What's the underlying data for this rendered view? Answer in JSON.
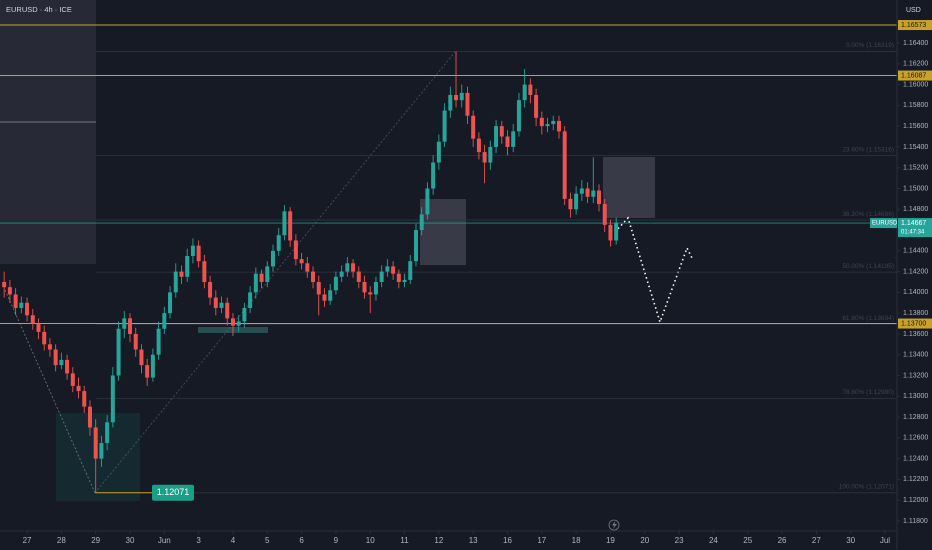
{
  "chart_data": {
    "type": "candlestick",
    "title": "EURUSD · 4h · ICE",
    "currency": "USD",
    "up_color": "#26a69a",
    "down_color": "#ef5350",
    "xlim": [
      -4.73,
      152.1
    ],
    "ylim": [
      1.11713,
      1.16814
    ],
    "xticks": [
      {
        "value": 0,
        "label": "27"
      },
      {
        "value": 6,
        "label": "28"
      },
      {
        "value": 12,
        "label": "29"
      },
      {
        "value": 18,
        "label": "30"
      },
      {
        "value": 24,
        "label": "Jun"
      },
      {
        "value": 30,
        "label": "3"
      },
      {
        "value": 36,
        "label": "4"
      },
      {
        "value": 42,
        "label": "5"
      },
      {
        "value": 48,
        "label": "6"
      },
      {
        "value": 54,
        "label": "9"
      },
      {
        "value": 60,
        "label": "10"
      },
      {
        "value": 66,
        "label": "11"
      },
      {
        "value": 72,
        "label": "12"
      },
      {
        "value": 78,
        "label": "13"
      },
      {
        "value": 84,
        "label": "16"
      },
      {
        "value": 90,
        "label": "17"
      },
      {
        "value": 96,
        "label": "18"
      },
      {
        "value": 102,
        "label": "19"
      },
      {
        "value": 108,
        "label": "20"
      },
      {
        "value": 114,
        "label": "23"
      },
      {
        "value": 120,
        "label": "24"
      },
      {
        "value": 126,
        "label": "25"
      },
      {
        "value": 132,
        "label": "26"
      },
      {
        "value": 138,
        "label": "27"
      },
      {
        "value": 144,
        "label": "30"
      },
      {
        "value": 150,
        "label": "Jul"
      }
    ],
    "yticks": [
      {
        "value": 1.164,
        "label": "1.16400"
      },
      {
        "value": 1.162,
        "label": "1.16200"
      },
      {
        "value": 1.16,
        "label": "1.16000"
      },
      {
        "value": 1.158,
        "label": "1.15800"
      },
      {
        "value": 1.156,
        "label": "1.15600"
      },
      {
        "value": 1.154,
        "label": "1.15400"
      },
      {
        "value": 1.152,
        "label": "1.15200"
      },
      {
        "value": 1.15,
        "label": "1.15000"
      },
      {
        "value": 1.148,
        "label": "1.14800"
      },
      {
        "value": 1.144,
        "label": "1.14400"
      },
      {
        "value": 1.142,
        "label": "1.14200"
      },
      {
        "value": 1.14,
        "label": "1.14000"
      },
      {
        "value": 1.138,
        "label": "1.13800"
      },
      {
        "value": 1.136,
        "label": "1.13600"
      },
      {
        "value": 1.134,
        "label": "1.13400"
      },
      {
        "value": 1.132,
        "label": "1.13200"
      },
      {
        "value": 1.13,
        "label": "1.13000"
      },
      {
        "value": 1.128,
        "label": "1.12800"
      },
      {
        "value": 1.126,
        "label": "1.12600"
      },
      {
        "value": 1.124,
        "label": "1.12400"
      },
      {
        "value": 1.122,
        "label": "1.12200"
      },
      {
        "value": 1.12,
        "label": "1.12000"
      },
      {
        "value": 1.118,
        "label": "1.11800"
      }
    ],
    "x": [
      -4,
      -3,
      -2,
      -1,
      0,
      1,
      2,
      3,
      4,
      5,
      6,
      7,
      8,
      9,
      10,
      11,
      12,
      13,
      14,
      15,
      16,
      17,
      18,
      19,
      20,
      21,
      22,
      23,
      24,
      25,
      26,
      27,
      28,
      29,
      30,
      31,
      32,
      33,
      34,
      35,
      36,
      37,
      38,
      39,
      40,
      41,
      42,
      43,
      44,
      45,
      46,
      47,
      48,
      49,
      50,
      51,
      52,
      53,
      54,
      55,
      56,
      57,
      58,
      59,
      60,
      61,
      62,
      63,
      64,
      65,
      66,
      67,
      68,
      69,
      70,
      71,
      72,
      73,
      74,
      75,
      76,
      77,
      78,
      79,
      80,
      81,
      82,
      83,
      84,
      85,
      86,
      87,
      88,
      89,
      90,
      91,
      92,
      93,
      94,
      95,
      96,
      97,
      98,
      99,
      100,
      101,
      102,
      103
    ],
    "open": [
      1.141,
      1.1405,
      1.1398,
      1.1385,
      1.139,
      1.1378,
      1.137,
      1.1362,
      1.135,
      1.1345,
      1.133,
      1.1335,
      1.1322,
      1.131,
      1.1305,
      1.129,
      1.127,
      1.124,
      1.1255,
      1.1275,
      1.132,
      1.1365,
      1.1375,
      1.136,
      1.1345,
      1.133,
      1.1318,
      1.134,
      1.1365,
      1.138,
      1.14,
      1.142,
      1.1415,
      1.1435,
      1.1445,
      1.143,
      1.141,
      1.1395,
      1.1385,
      1.139,
      1.1375,
      1.1368,
      1.1372,
      1.1385,
      1.14,
      1.1418,
      1.141,
      1.1425,
      1.144,
      1.1455,
      1.1478,
      1.145,
      1.1432,
      1.1428,
      1.142,
      1.141,
      1.1398,
      1.1392,
      1.1402,
      1.1415,
      1.142,
      1.1428,
      1.142,
      1.141,
      1.14,
      1.1398,
      1.141,
      1.142,
      1.1425,
      1.1418,
      1.141,
      1.1412,
      1.143,
      1.146,
      1.1475,
      1.15,
      1.1525,
      1.1545,
      1.1575,
      1.159,
      1.1585,
      1.1592,
      1.157,
      1.1548,
      1.1535,
      1.1525,
      1.154,
      1.156,
      1.155,
      1.154,
      1.1555,
      1.1585,
      1.16,
      1.159,
      1.1568,
      1.156,
      1.1562,
      1.1565,
      1.1555,
      1.149,
      1.148,
      1.1495,
      1.15,
      1.1492,
      1.1498,
      1.1485,
      1.1465,
      1.145
    ],
    "high": [
      1.142,
      1.1412,
      1.1404,
      1.1396,
      1.1395,
      1.1384,
      1.1375,
      1.1368,
      1.1356,
      1.135,
      1.1342,
      1.134,
      1.1328,
      1.1318,
      1.131,
      1.1296,
      1.1278,
      1.1262,
      1.1282,
      1.1328,
      1.1372,
      1.1382,
      1.138,
      1.1366,
      1.135,
      1.1336,
      1.1346,
      1.1372,
      1.1386,
      1.1406,
      1.1428,
      1.1426,
      1.1442,
      1.1452,
      1.145,
      1.1436,
      1.1416,
      1.1402,
      1.1396,
      1.1395,
      1.138,
      1.1378,
      1.139,
      1.1406,
      1.1424,
      1.1422,
      1.143,
      1.1446,
      1.1462,
      1.1484,
      1.1482,
      1.1456,
      1.1438,
      1.1434,
      1.1425,
      1.1416,
      1.1404,
      1.1408,
      1.142,
      1.1426,
      1.1434,
      1.1432,
      1.1425,
      1.1416,
      1.1406,
      1.1415,
      1.1426,
      1.1432,
      1.143,
      1.1422,
      1.1418,
      1.1436,
      1.1466,
      1.1482,
      1.1506,
      1.1532,
      1.1552,
      1.1582,
      1.1598,
      1.1632,
      1.16,
      1.1598,
      1.1575,
      1.1554,
      1.1542,
      1.1546,
      1.1566,
      1.1565,
      1.1556,
      1.1562,
      1.1592,
      1.1615,
      1.1606,
      1.1596,
      1.1574,
      1.1568,
      1.157,
      1.157,
      1.156,
      1.1496,
      1.1502,
      1.1508,
      1.1506,
      1.153,
      1.1504,
      1.149,
      1.147,
      1.1472
    ],
    "low": [
      1.1395,
      1.139,
      1.1378,
      1.138,
      1.1372,
      1.1364,
      1.1355,
      1.1344,
      1.1338,
      1.1324,
      1.1326,
      1.1316,
      1.1304,
      1.1298,
      1.1284,
      1.1262,
      1.1207,
      1.1232,
      1.1248,
      1.127,
      1.1315,
      1.1356,
      1.1352,
      1.1338,
      1.1322,
      1.131,
      1.1314,
      1.1335,
      1.136,
      1.1375,
      1.1395,
      1.1408,
      1.141,
      1.1428,
      1.1424,
      1.1404,
      1.1388,
      1.1378,
      1.138,
      1.1368,
      1.1358,
      1.1362,
      1.1366,
      1.138,
      1.1394,
      1.1404,
      1.1405,
      1.142,
      1.1435,
      1.145,
      1.1444,
      1.1426,
      1.1422,
      1.1414,
      1.1404,
      1.1378,
      1.1386,
      1.1388,
      1.1398,
      1.141,
      1.1415,
      1.1414,
      1.1404,
      1.1394,
      1.138,
      1.1392,
      1.1405,
      1.1415,
      1.1412,
      1.1404,
      1.1405,
      1.1408,
      1.1425,
      1.1455,
      1.147,
      1.1494,
      1.1518,
      1.154,
      1.1568,
      1.1578,
      1.1578,
      1.1562,
      1.154,
      1.1528,
      1.1505,
      1.1518,
      1.1534,
      1.1543,
      1.1532,
      1.1535,
      1.155,
      1.1578,
      1.1582,
      1.156,
      1.1552,
      1.1554,
      1.1556,
      1.1548,
      1.1484,
      1.1472,
      1.1475,
      1.1488,
      1.1486,
      1.1486,
      1.1478,
      1.1458,
      1.1444,
      1.1446
    ],
    "close": [
      1.1405,
      1.1398,
      1.1385,
      1.139,
      1.1378,
      1.137,
      1.1362,
      1.135,
      1.1345,
      1.133,
      1.1335,
      1.1322,
      1.131,
      1.1305,
      1.129,
      1.127,
      1.124,
      1.1255,
      1.1275,
      1.132,
      1.1365,
      1.1375,
      1.136,
      1.1345,
      1.133,
      1.1318,
      1.134,
      1.1365,
      1.138,
      1.14,
      1.142,
      1.1415,
      1.1435,
      1.1445,
      1.143,
      1.141,
      1.1395,
      1.1385,
      1.139,
      1.1375,
      1.1368,
      1.1372,
      1.1385,
      1.14,
      1.1418,
      1.141,
      1.1425,
      1.144,
      1.1455,
      1.1478,
      1.145,
      1.1432,
      1.1428,
      1.142,
      1.141,
      1.1398,
      1.1392,
      1.1402,
      1.1415,
      1.142,
      1.1428,
      1.142,
      1.141,
      1.14,
      1.1398,
      1.141,
      1.142,
      1.1425,
      1.1418,
      1.141,
      1.1412,
      1.143,
      1.146,
      1.1475,
      1.15,
      1.1525,
      1.1545,
      1.1575,
      1.159,
      1.1585,
      1.1592,
      1.157,
      1.1548,
      1.1535,
      1.1525,
      1.154,
      1.156,
      1.155,
      1.154,
      1.1555,
      1.1585,
      1.16,
      1.159,
      1.1568,
      1.156,
      1.1562,
      1.1565,
      1.1555,
      1.149,
      1.148,
      1.1495,
      1.15,
      1.1492,
      1.1498,
      1.1485,
      1.1465,
      1.145,
      1.1467
    ],
    "hlines": [
      {
        "value": 1.16573,
        "label": "1.16573"
      },
      {
        "value": 1.16087,
        "label": "1.16087"
      },
      {
        "value": 1.137,
        "label": "1.13700"
      }
    ],
    "hline_color": "#c9a227",
    "fib_levels": [
      {
        "value": 1.16319,
        "label": "0.00% (1.16319)"
      },
      {
        "value": 1.15316,
        "label": "23.60% (1.15316)"
      },
      {
        "value": 1.14696,
        "label": "38.20% (1.14696)"
      },
      {
        "value": 1.14195,
        "label": "50.00% (1.14195)"
      },
      {
        "value": 1.13694,
        "label": "61.80% (1.13694)"
      },
      {
        "value": 1.1298,
        "label": "78.60% (1.12980)"
      },
      {
        "value": 1.12071,
        "label": "100.00% (1.12071)"
      }
    ],
    "last_price": {
      "symbol": "EURUSD",
      "value": 1.14667,
      "label": "1.14667",
      "countdown": "01:47:34"
    },
    "low_marker": {
      "value": 1.12071,
      "label": "1.12071"
    }
  }
}
